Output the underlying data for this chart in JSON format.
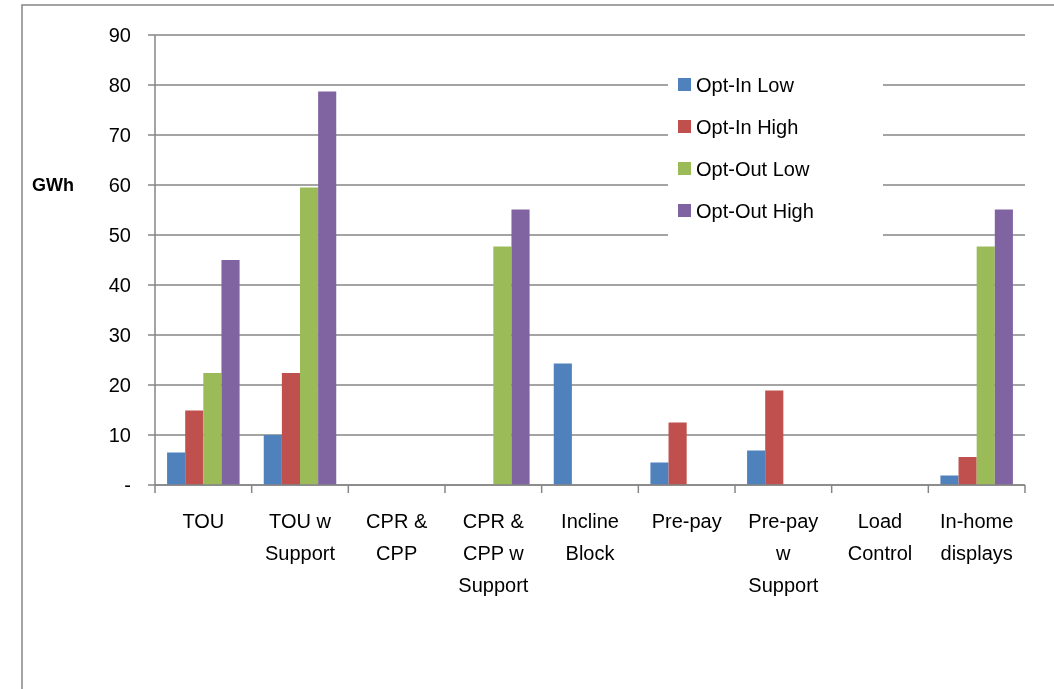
{
  "chart_data": {
    "type": "bar",
    "ylabel": "GWh",
    "categories": [
      "TOU",
      "TOU w Support",
      "CPR & CPP",
      "CPR & CPP w Support",
      "Incline Block",
      "Pre-pay",
      "Pre-pay w Support",
      "Load Control",
      "In-home displays"
    ],
    "series": [
      {
        "name": "Opt-In Low",
        "color": "#4f81bd",
        "values": [
          6.5,
          10,
          null,
          null,
          24.3,
          4.5,
          6.9,
          null,
          1.9
        ]
      },
      {
        "name": "Opt-In High",
        "color": "#c0504d",
        "values": [
          14.9,
          22.4,
          null,
          null,
          null,
          12.5,
          18.9,
          null,
          5.6
        ]
      },
      {
        "name": "Opt-Out Low",
        "color": "#9bbb59",
        "values": [
          22.4,
          59.5,
          null,
          47.7,
          null,
          null,
          null,
          null,
          47.7
        ]
      },
      {
        "name": "Opt-Out High",
        "color": "#8064a2",
        "values": [
          45,
          78.7,
          null,
          55.1,
          null,
          null,
          null,
          null,
          55.1
        ]
      }
    ],
    "ylim": [
      0,
      90
    ],
    "yticks": [
      {
        "value": 0,
        "label": "-"
      },
      10,
      20,
      30,
      40,
      50,
      60,
      70,
      80,
      90
    ],
    "grid": "y",
    "legend": "top right"
  }
}
